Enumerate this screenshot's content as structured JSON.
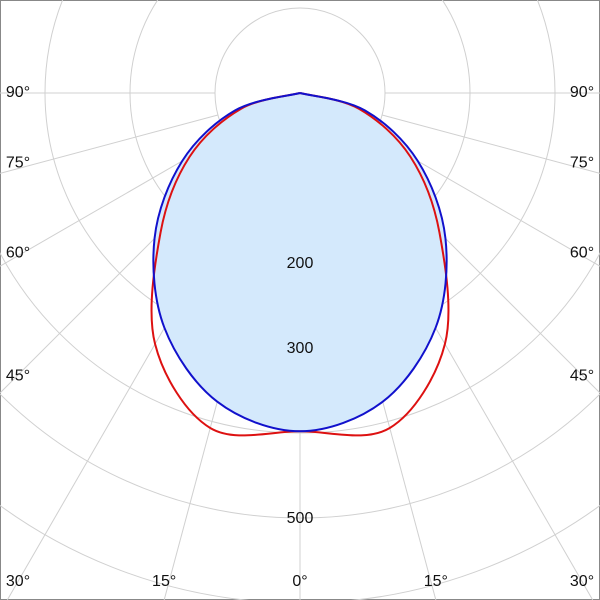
{
  "chart_data": {
    "type": "polar",
    "angles": [
      {
        "value": 0,
        "label": "0°"
      },
      {
        "value": 15,
        "label": "15°"
      },
      {
        "value": 30,
        "label": "30°"
      },
      {
        "value": 45,
        "label": "45°"
      },
      {
        "value": 60,
        "label": "60°"
      },
      {
        "value": 75,
        "label": "75°"
      },
      {
        "value": 90,
        "label": "90°"
      }
    ],
    "series": [
      {
        "color": "#dd1111",
        "values": [
          398,
          408,
          341,
          232,
          150,
          72,
          0
        ]
      },
      {
        "color": "#1111cc",
        "fill": "#d4e9fc",
        "values": [
          398,
          376,
          319,
          242,
          160,
          79,
          0
        ]
      }
    ],
    "rlim": [
      0,
      600
    ],
    "rgrid": [
      100,
      200,
      300,
      400,
      500,
      600
    ],
    "rticks": [
      200,
      300,
      500
    ],
    "grid": true
  }
}
